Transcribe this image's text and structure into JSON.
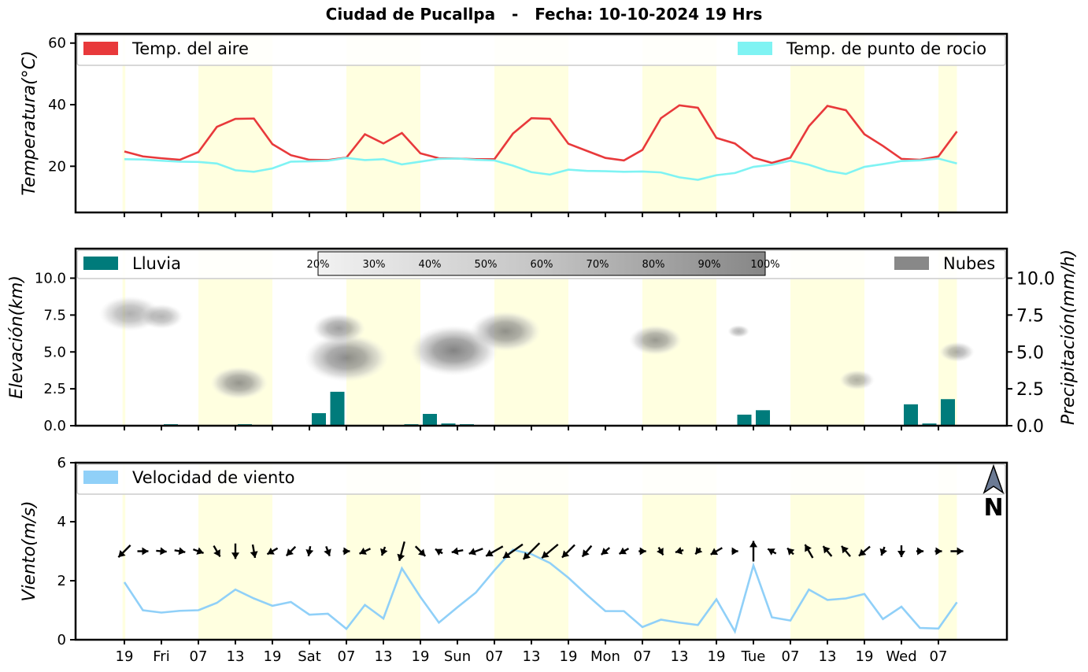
{
  "title": "Ciudad de Pucallpa   -   Fecha: 10-10-2024 19 Hrs",
  "x_tick_labels": [
    "19",
    "Fri",
    "07",
    "13",
    "19",
    "Sat",
    "07",
    "13",
    "19",
    "Sun",
    "07",
    "13",
    "19",
    "Mon",
    "07",
    "13",
    "19",
    "Tue",
    "07",
    "13",
    "19",
    "Wed",
    "07"
  ],
  "colors": {
    "temp_air": "#e8393b",
    "temp_dew": "#7ff3f3",
    "rain": "#007b7b",
    "clouds": "#888888",
    "wind": "#90d0f8",
    "daylight": "#ffffe0"
  },
  "chart_data": [
    {
      "type": "line",
      "ylabel": "Temperatura(°C)",
      "ylim": [
        5,
        63
      ],
      "yticks": [
        20,
        40,
        60
      ],
      "x_step_hours": 3,
      "legend_placement": "top",
      "series": [
        {
          "name": "Temp. del aire",
          "values": [
            24.8,
            23.2,
            22.6,
            22.1,
            24.6,
            32.8,
            35.4,
            35.5,
            27.2,
            23.6,
            22.1,
            22.0,
            22.8,
            30.4,
            27.4,
            30.8,
            24.2,
            22.6,
            22.5,
            22.3,
            22.3,
            30.6,
            35.6,
            35.4,
            27.3,
            25.0,
            22.7,
            21.9,
            25.3,
            35.6,
            39.8,
            39.0,
            29.2,
            27.4,
            22.8,
            21.1,
            22.8,
            33.0,
            39.6,
            38.2,
            30.4,
            26.6,
            22.4,
            22.1,
            23.2,
            31.3
          ]
        },
        {
          "name": "Temp. de punto de rocio",
          "values": [
            22.3,
            22.2,
            21.8,
            21.5,
            21.4,
            20.9,
            18.7,
            18.2,
            19.3,
            21.5,
            21.6,
            21.8,
            22.7,
            22.0,
            22.3,
            20.6,
            21.5,
            22.4,
            22.5,
            22.1,
            21.9,
            20.2,
            18.1,
            17.3,
            18.9,
            18.5,
            18.4,
            18.2,
            18.3,
            18.0,
            16.4,
            15.6,
            17.1,
            17.8,
            19.8,
            20.5,
            21.8,
            20.5,
            18.5,
            17.5,
            19.8,
            20.7,
            21.7,
            21.9,
            22.5,
            20.9
          ]
        }
      ]
    },
    {
      "type": "bar",
      "ylabel": "Elevación(km)",
      "ylabel_right": "Precipitación(mm/h)",
      "ylim": [
        0,
        12
      ],
      "yticks": [
        0.0,
        2.5,
        5.0,
        7.5,
        10.0
      ],
      "yticks_labels": [
        "0.0",
        "2.5",
        "5.0",
        "7.5",
        "10.0"
      ],
      "legend_placement": "top",
      "series": [
        {
          "name": "Lluvia",
          "values": [
            0,
            0,
            0.1,
            0,
            0,
            0,
            0.1,
            0,
            0,
            0.03,
            0.85,
            2.3,
            0,
            0,
            0.03,
            0.1,
            0.8,
            0.15,
            0.1,
            0,
            0,
            0,
            0,
            0,
            0,
            0,
            0,
            0,
            0,
            0,
            0,
            0,
            0,
            0.75,
            1.05,
            0,
            0,
            0,
            0,
            0,
            0.03,
            0.03,
            1.45,
            0.15,
            1.8,
            0
          ]
        },
        {
          "name": "Nubes"
        }
      ],
      "colorbar_labels": [
        "20%",
        "30%",
        "40%",
        "50%",
        "60%",
        "70%",
        "80%",
        "90%",
        "100%"
      ],
      "cloud_patches": [
        {
          "x": 0.3,
          "y": 7.6,
          "size": 1.4,
          "density": 0.35
        },
        {
          "x": 2.0,
          "y": 7.4,
          "size": 1.0,
          "density": 0.3
        },
        {
          "x": 6.2,
          "y": 2.9,
          "size": 1.3,
          "density": 0.65
        },
        {
          "x": 12.0,
          "y": 4.6,
          "size": 1.9,
          "density": 0.75
        },
        {
          "x": 11.6,
          "y": 6.6,
          "size": 1.2,
          "density": 0.55
        },
        {
          "x": 17.8,
          "y": 5.1,
          "size": 2.0,
          "density": 0.85
        },
        {
          "x": 20.6,
          "y": 6.4,
          "size": 1.6,
          "density": 0.7
        },
        {
          "x": 28.7,
          "y": 5.8,
          "size": 1.2,
          "density": 0.6
        },
        {
          "x": 33.2,
          "y": 6.4,
          "size": 0.5,
          "density": 0.3
        },
        {
          "x": 39.6,
          "y": 3.1,
          "size": 0.8,
          "density": 0.35
        },
        {
          "x": 45.0,
          "y": 5.0,
          "size": 0.8,
          "density": 0.4
        }
      ]
    },
    {
      "type": "line",
      "ylabel": "Viento(m/s)",
      "ylim": [
        0,
        6
      ],
      "yticks": [
        0,
        2,
        4,
        6
      ],
      "legend_placement": "top-left",
      "series": [
        {
          "name": "Velocidad de viento",
          "values": [
            1.95,
            1.0,
            0.92,
            0.98,
            1.0,
            1.25,
            1.7,
            1.4,
            1.15,
            1.28,
            0.85,
            0.88,
            0.37,
            1.18,
            0.72,
            2.42,
            1.45,
            0.58,
            1.1,
            1.6,
            2.35,
            3.05,
            2.9,
            2.6,
            2.1,
            1.52,
            0.97,
            0.97,
            0.43,
            0.68,
            0.58,
            0.5,
            1.37,
            0.28,
            2.52,
            0.76,
            0.65,
            1.7,
            1.35,
            1.4,
            1.55,
            0.7,
            1.12,
            0.4,
            0.38,
            1.27
          ]
        }
      ],
      "wind_direction_deg": [
        225,
        90,
        95,
        100,
        110,
        150,
        180,
        170,
        240,
        225,
        190,
        160,
        90,
        245,
        200,
        195,
        135,
        300,
        260,
        250,
        240,
        235,
        225,
        230,
        225,
        220,
        230,
        240,
        90,
        150,
        255,
        220,
        240,
        90,
        0,
        300,
        315,
        330,
        320,
        320,
        230,
        200,
        180,
        90,
        90,
        90
      ],
      "north_label": "N"
    }
  ]
}
